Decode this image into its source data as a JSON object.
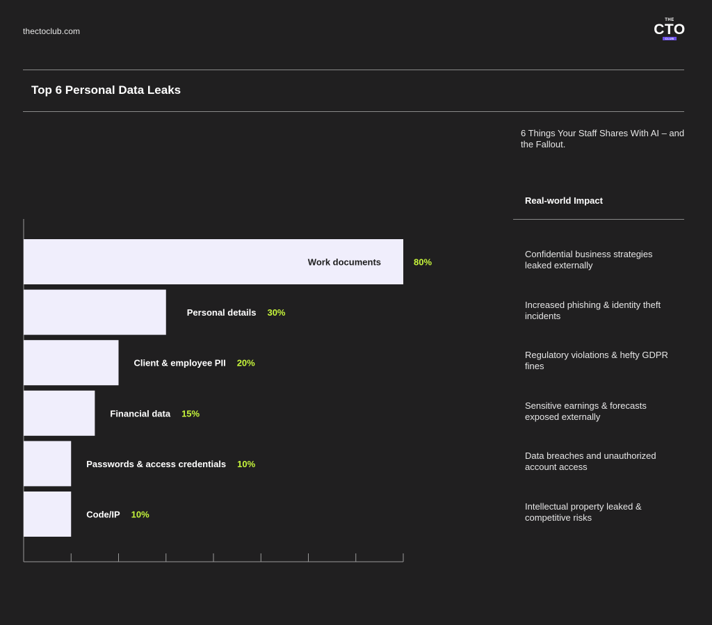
{
  "header": {
    "site": "thectoclub.com",
    "logo": {
      "top": "THE",
      "main": "CTO",
      "bottom": "CLUB"
    }
  },
  "title": "Top 6 Personal Data Leaks",
  "subtitle": "6 Things Your Staff Shares With AI – and the Fallout.",
  "impact_header": "Real-world Impact",
  "colors": {
    "background": "#201f20",
    "bar": "#f0eefc",
    "label_dark": "#1d1d1d",
    "label_light": "#ffffff",
    "percent": "#c6f53b",
    "axis": "#9a9a9a",
    "logo_accent": "#6b4fe8"
  },
  "chart_data": {
    "type": "bar",
    "orientation": "horizontal",
    "categories": [
      "Work documents",
      "Personal details",
      "Client & employee PII",
      "Financial data",
      "Passwords & access credentials",
      "Code/IP"
    ],
    "values": [
      80,
      30,
      20,
      15,
      10,
      10
    ],
    "value_labels": [
      "80%",
      "30%",
      "20%",
      "15%",
      "10%",
      "10%"
    ],
    "xlim": [
      0,
      80
    ],
    "x_ticks": 8,
    "impacts": [
      "Confidential business strategies leaked externally",
      "Increased phishing & identity theft incidents",
      "Regulatory violations & hefty GDPR fines",
      "Sensitive earnings & forecasts exposed externally",
      "Data breaches and unauthorized account access",
      "Intellectual property leaked & competitive risks"
    ]
  }
}
